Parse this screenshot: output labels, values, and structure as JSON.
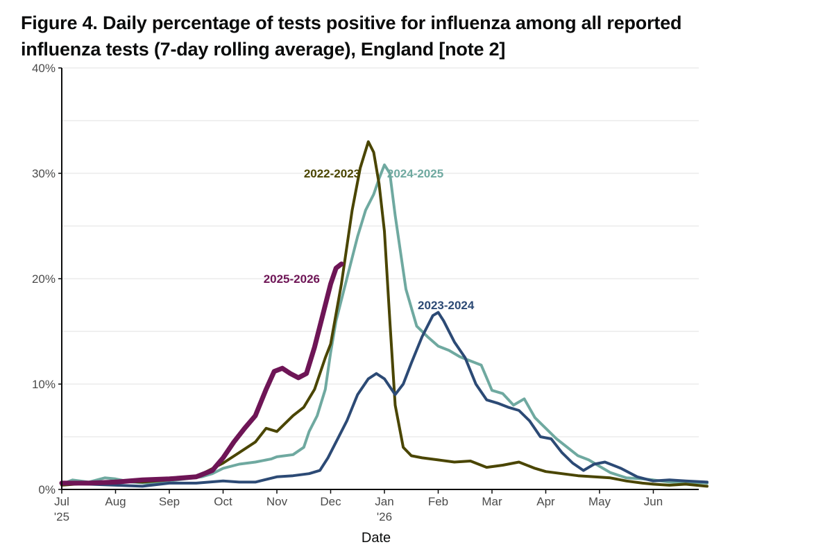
{
  "figure": {
    "title_line1": "Figure 4. Daily percentage of tests positive for influenza among all reported",
    "title_line2": "influenza tests (7-day rolling average), England [note 2]"
  },
  "chart_data": {
    "type": "line",
    "title": "Figure 4. Daily percentage of tests positive for influenza among all reported influenza tests (7-day rolling average), England [note 2]",
    "xlabel": "Date",
    "ylabel": "",
    "x_unit": "months since 1 Jul",
    "xlim": [
      0,
      12
    ],
    "ylim": [
      0,
      40
    ],
    "grid": true,
    "yticks": [
      {
        "value": 0,
        "label": "0%"
      },
      {
        "value": 10,
        "label": "10%"
      },
      {
        "value": 20,
        "label": "20%"
      },
      {
        "value": 30,
        "label": "30%"
      },
      {
        "value": 40,
        "label": "40%"
      }
    ],
    "xticks": [
      {
        "value": 0,
        "label": "Jul",
        "sublabel": "'25"
      },
      {
        "value": 1,
        "label": "Aug",
        "sublabel": ""
      },
      {
        "value": 2,
        "label": "Sep",
        "sublabel": ""
      },
      {
        "value": 3,
        "label": "Oct",
        "sublabel": ""
      },
      {
        "value": 4,
        "label": "Nov",
        "sublabel": ""
      },
      {
        "value": 5,
        "label": "Dec",
        "sublabel": ""
      },
      {
        "value": 6,
        "label": "Jan",
        "sublabel": "'26"
      },
      {
        "value": 7,
        "label": "Feb",
        "sublabel": ""
      },
      {
        "value": 8,
        "label": "Mar",
        "sublabel": ""
      },
      {
        "value": 9,
        "label": "Apr",
        "sublabel": ""
      },
      {
        "value": 10,
        "label": "May",
        "sublabel": ""
      },
      {
        "value": 11,
        "label": "Jun",
        "sublabel": ""
      }
    ],
    "series": [
      {
        "name": "2024-2025",
        "color": "#6fa9a0",
        "width": 4,
        "label_at": [
          6.05,
          30
        ],
        "label_anchor": "start",
        "x": [
          0,
          0.2,
          0.5,
          0.8,
          1,
          1.3,
          1.6,
          2,
          2.3,
          2.6,
          2.8,
          3,
          3.3,
          3.6,
          3.9,
          4,
          4.3,
          4.5,
          4.6,
          4.75,
          4.9,
          5,
          5.1,
          5.3,
          5.5,
          5.65,
          5.8,
          5.9,
          6,
          6.1,
          6.2,
          6.4,
          6.6,
          6.8,
          7,
          7.2,
          7.4,
          7.6,
          7.8,
          8,
          8.2,
          8.4,
          8.6,
          8.8,
          9,
          9.2,
          9.4,
          9.6,
          9.8,
          10,
          10.2,
          10.5,
          10.8,
          11,
          11.3,
          11.6,
          12
        ],
        "values": [
          0.5,
          0.9,
          0.7,
          1.1,
          1.0,
          0.7,
          0.6,
          0.8,
          1.0,
          1.2,
          1.5,
          2.0,
          2.4,
          2.6,
          2.9,
          3.1,
          3.3,
          4.0,
          5.5,
          7.0,
          9.5,
          13.0,
          16.0,
          20.0,
          24.0,
          26.5,
          28.0,
          29.5,
          30.8,
          30.0,
          26.0,
          19.0,
          15.5,
          14.5,
          13.6,
          13.2,
          12.6,
          12.2,
          11.8,
          9.4,
          9.1,
          8.0,
          8.6,
          6.8,
          5.8,
          4.8,
          4.0,
          3.2,
          2.8,
          2.2,
          1.6,
          1.1,
          1.0,
          0.9,
          0.7,
          0.7,
          0.6
        ]
      },
      {
        "name": "2022-2023",
        "color": "#4a4500",
        "width": 4,
        "label_at": [
          5.55,
          30
        ],
        "label_anchor": "end",
        "x": [
          0,
          0.5,
          1,
          1.5,
          2,
          2.5,
          3,
          3.3,
          3.6,
          3.8,
          4,
          4.3,
          4.5,
          4.7,
          4.9,
          5,
          5.2,
          5.4,
          5.55,
          5.7,
          5.8,
          5.9,
          6,
          6.1,
          6.2,
          6.35,
          6.5,
          6.7,
          7,
          7.3,
          7.6,
          7.9,
          8.2,
          8.5,
          8.8,
          9,
          9.3,
          9.6,
          9.9,
          10.2,
          10.5,
          10.8,
          11,
          11.3,
          11.6,
          12
        ],
        "values": [
          0.4,
          0.6,
          0.8,
          0.7,
          0.9,
          1.2,
          2.5,
          3.5,
          4.5,
          5.8,
          5.5,
          7.0,
          7.8,
          9.5,
          12.5,
          13.8,
          19.5,
          26.5,
          30.5,
          33.0,
          32.0,
          29.0,
          24.5,
          16.0,
          8.0,
          4.0,
          3.2,
          3.0,
          2.8,
          2.6,
          2.7,
          2.1,
          2.3,
          2.6,
          2.0,
          1.7,
          1.5,
          1.3,
          1.2,
          1.1,
          0.8,
          0.6,
          0.5,
          0.4,
          0.5,
          0.3
        ]
      },
      {
        "name": "2023-2024",
        "color": "#2c4a75",
        "width": 4,
        "label_at": [
          6.62,
          17.5
        ],
        "label_anchor": "start",
        "x": [
          0,
          0.5,
          1,
          1.5,
          2,
          2.5,
          3,
          3.3,
          3.6,
          4,
          4.3,
          4.6,
          4.8,
          4.95,
          5.1,
          5.3,
          5.5,
          5.7,
          5.85,
          6,
          6.2,
          6.35,
          6.5,
          6.7,
          6.9,
          7,
          7.1,
          7.3,
          7.5,
          7.7,
          7.9,
          8.1,
          8.3,
          8.5,
          8.7,
          8.9,
          9.1,
          9.3,
          9.5,
          9.7,
          9.9,
          10.1,
          10.4,
          10.7,
          11,
          11.3,
          11.6,
          12
        ],
        "values": [
          0.6,
          0.5,
          0.4,
          0.3,
          0.6,
          0.6,
          0.8,
          0.7,
          0.7,
          1.2,
          1.3,
          1.5,
          1.8,
          3.0,
          4.5,
          6.5,
          9.0,
          10.5,
          11.0,
          10.5,
          9.0,
          10.0,
          12.0,
          14.5,
          16.5,
          16.8,
          16.0,
          14.0,
          12.5,
          10.0,
          8.5,
          8.2,
          7.8,
          7.5,
          6.5,
          5.0,
          4.8,
          3.5,
          2.5,
          1.8,
          2.4,
          2.6,
          2.0,
          1.2,
          0.8,
          0.9,
          0.8,
          0.7
        ]
      },
      {
        "name": "2025-2026",
        "color": "#6e1556",
        "width": 7,
        "label_at": [
          4.8,
          20
        ],
        "label_anchor": "end",
        "x": [
          0,
          0.5,
          1,
          1.5,
          2,
          2.5,
          2.8,
          3,
          3.2,
          3.4,
          3.6,
          3.8,
          3.95,
          4.1,
          4.25,
          4.4,
          4.55,
          4.7,
          4.85,
          5,
          5.1,
          5.2
        ],
        "values": [
          0.6,
          0.6,
          0.7,
          0.9,
          1.0,
          1.2,
          1.8,
          3.0,
          4.5,
          5.8,
          7.0,
          9.5,
          11.2,
          11.5,
          11.0,
          10.6,
          11.0,
          13.5,
          16.5,
          19.5,
          21.0,
          21.4
        ]
      }
    ]
  }
}
